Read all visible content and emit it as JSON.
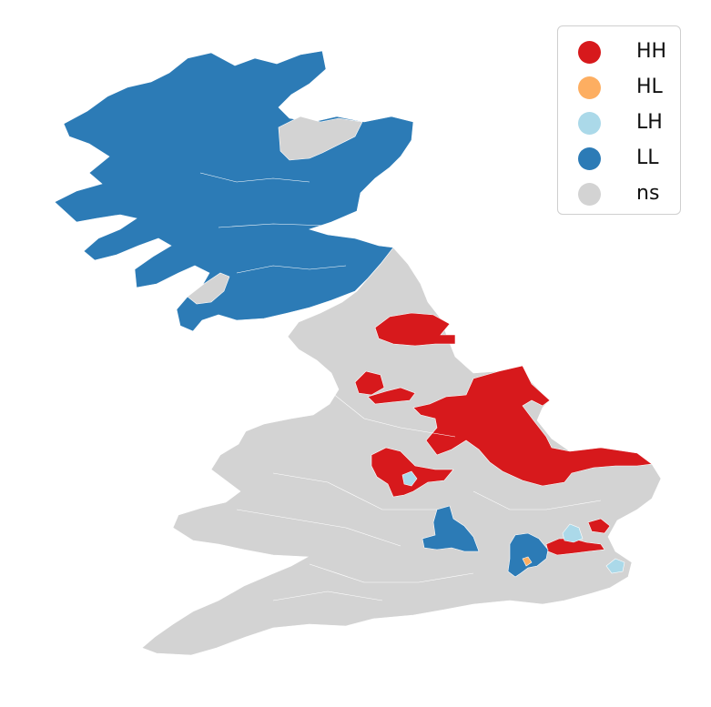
{
  "map": {
    "categories": [
      {
        "key": "HH",
        "label": "HH",
        "color": "#d7191c"
      },
      {
        "key": "HL",
        "label": "HL",
        "color": "#fdae61"
      },
      {
        "key": "LH",
        "label": "LH",
        "color": "#abd9e9"
      },
      {
        "key": "LL",
        "label": "LL",
        "color": "#2c7bb6"
      },
      {
        "key": "ns",
        "label": "ns",
        "color": "#d3d3d3"
      }
    ],
    "legend_position": "top-right"
  }
}
